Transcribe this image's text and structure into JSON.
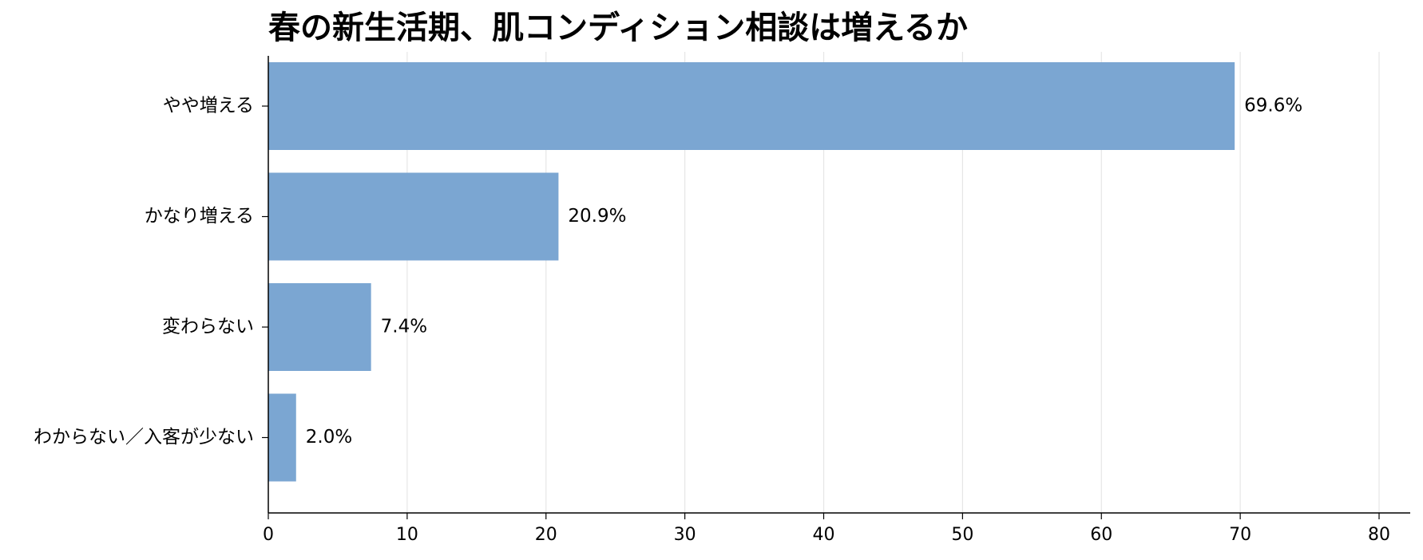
{
  "chart_data": {
    "type": "bar",
    "orientation": "horizontal",
    "title": "春の新生活期、肌コンディション相談は増えるか",
    "categories": [
      "やや増える",
      "かなり増える",
      "変わらない",
      "わからない／入客が少ない"
    ],
    "values": [
      69.6,
      20.9,
      7.4,
      2.0
    ],
    "value_labels": [
      "69.6%",
      "20.9%",
      "7.4%",
      "2.0%"
    ],
    "xlabel": "",
    "ylabel": "",
    "xlim": [
      0,
      80
    ],
    "xticks": [
      0,
      10,
      20,
      30,
      40,
      50,
      60,
      70,
      80
    ],
    "xtick_labels": [
      "0",
      "10",
      "20",
      "30",
      "40",
      "50",
      "60",
      "70",
      "80"
    ],
    "grid": "vertical",
    "legend": "none",
    "colors": {
      "bar": "#7ba6d2",
      "grid": "#e6e6e6",
      "axis": "#000000"
    }
  }
}
